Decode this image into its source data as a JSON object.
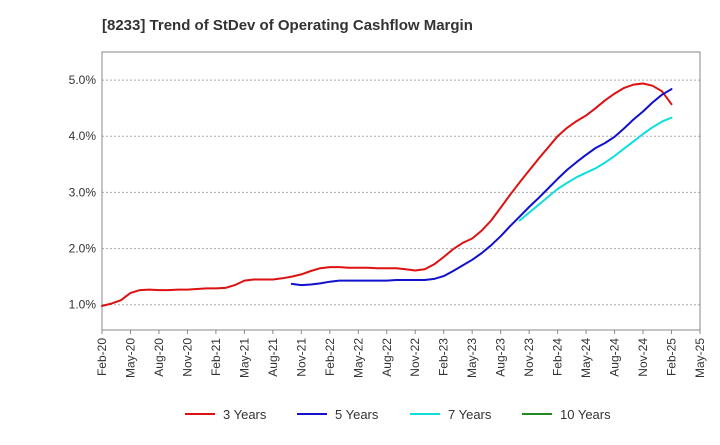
{
  "chart_data": {
    "type": "line",
    "title": "[8233]  Trend of StDev of Operating Cashflow Margin",
    "xlabel": "",
    "ylabel": "",
    "x_ticks": [
      "Feb-20",
      "May-20",
      "Aug-20",
      "Nov-20",
      "Feb-21",
      "May-21",
      "Aug-21",
      "Nov-21",
      "Feb-22",
      "May-22",
      "Aug-22",
      "Nov-22",
      "Feb-23",
      "May-23",
      "Aug-23",
      "Nov-23",
      "Feb-24",
      "May-24",
      "Aug-24",
      "Nov-24",
      "Feb-25",
      "May-25"
    ],
    "y_ticks": [
      "1.0%",
      "2.0%",
      "3.0%",
      "4.0%",
      "5.0%"
    ],
    "ylim": [
      0.55,
      5.5
    ],
    "grid": "y-dashed",
    "legend_position": "bottom",
    "series": [
      {
        "name": "3 Years",
        "color": "#dd1111",
        "x": [
          "Feb-20",
          "Mar-20",
          "Apr-20",
          "May-20",
          "Jun-20",
          "Jul-20",
          "Aug-20",
          "Sep-20",
          "Oct-20",
          "Nov-20",
          "Dec-20",
          "Jan-21",
          "Feb-21",
          "Mar-21",
          "Apr-21",
          "May-21",
          "Jun-21",
          "Jul-21",
          "Aug-21",
          "Sep-21",
          "Oct-21",
          "Nov-21",
          "Dec-21",
          "Jan-22",
          "Feb-22",
          "Mar-22",
          "Apr-22",
          "May-22",
          "Jun-22",
          "Jul-22",
          "Aug-22",
          "Sep-22",
          "Oct-22",
          "Nov-22",
          "Dec-22",
          "Jan-23",
          "Feb-23",
          "Mar-23",
          "Apr-23",
          "May-23",
          "Jun-23",
          "Jul-23",
          "Aug-23",
          "Sep-23",
          "Oct-23",
          "Nov-23",
          "Dec-23",
          "Jan-24",
          "Feb-24",
          "Mar-24",
          "Apr-24",
          "May-24",
          "Jun-24",
          "Jul-24",
          "Aug-24",
          "Sep-24",
          "Oct-24",
          "Nov-24",
          "Dec-24",
          "Jan-25",
          "Feb-25"
        ],
        "values": [
          0.98,
          1.02,
          1.08,
          1.21,
          1.26,
          1.27,
          1.26,
          1.26,
          1.27,
          1.27,
          1.28,
          1.29,
          1.29,
          1.3,
          1.35,
          1.43,
          1.45,
          1.45,
          1.45,
          1.47,
          1.5,
          1.54,
          1.6,
          1.65,
          1.67,
          1.67,
          1.66,
          1.66,
          1.66,
          1.65,
          1.65,
          1.65,
          1.63,
          1.61,
          1.63,
          1.72,
          1.85,
          1.99,
          2.1,
          2.18,
          2.32,
          2.5,
          2.73,
          2.96,
          3.18,
          3.39,
          3.6,
          3.8,
          4.0,
          4.15,
          4.27,
          4.37,
          4.5,
          4.64,
          4.76,
          4.86,
          4.92,
          4.94,
          4.9,
          4.8,
          4.57
        ]
      },
      {
        "name": "5 Years",
        "color": "#1111cc",
        "x": [
          "Oct-21",
          "Nov-21",
          "Dec-21",
          "Jan-22",
          "Feb-22",
          "Mar-22",
          "Apr-22",
          "May-22",
          "Jun-22",
          "Jul-22",
          "Aug-22",
          "Sep-22",
          "Oct-22",
          "Nov-22",
          "Dec-22",
          "Jan-23",
          "Feb-23",
          "Mar-23",
          "Apr-23",
          "May-23",
          "Jun-23",
          "Jul-23",
          "Aug-23",
          "Sep-23",
          "Oct-23",
          "Nov-23",
          "Dec-23",
          "Jan-24",
          "Feb-24",
          "Mar-24",
          "Apr-24",
          "May-24",
          "Jun-24",
          "Jul-24",
          "Aug-24",
          "Sep-24",
          "Oct-24",
          "Nov-24",
          "Dec-24",
          "Jan-25",
          "Feb-25"
        ],
        "values": [
          1.37,
          1.35,
          1.36,
          1.38,
          1.41,
          1.43,
          1.43,
          1.43,
          1.43,
          1.43,
          1.43,
          1.44,
          1.44,
          1.44,
          1.44,
          1.46,
          1.51,
          1.6,
          1.7,
          1.8,
          1.92,
          2.06,
          2.22,
          2.4,
          2.57,
          2.74,
          2.9,
          3.07,
          3.24,
          3.4,
          3.54,
          3.67,
          3.79,
          3.88,
          3.99,
          4.14,
          4.3,
          4.44,
          4.6,
          4.74,
          4.84
        ]
      },
      {
        "name": "7 Years",
        "color": "#11dddd",
        "x": [
          "Oct-23",
          "Nov-23",
          "Dec-23",
          "Jan-24",
          "Feb-24",
          "Mar-24",
          "Apr-24",
          "May-24",
          "Jun-24",
          "Jul-24",
          "Aug-24",
          "Sep-24",
          "Oct-24",
          "Nov-24",
          "Dec-24",
          "Jan-25",
          "Feb-25"
        ],
        "values": [
          2.5,
          2.64,
          2.78,
          2.92,
          3.06,
          3.17,
          3.27,
          3.35,
          3.43,
          3.53,
          3.65,
          3.78,
          3.91,
          4.04,
          4.16,
          4.26,
          4.33
        ]
      },
      {
        "name": "10 Years",
        "color": "#228822",
        "x": [],
        "values": []
      }
    ]
  }
}
